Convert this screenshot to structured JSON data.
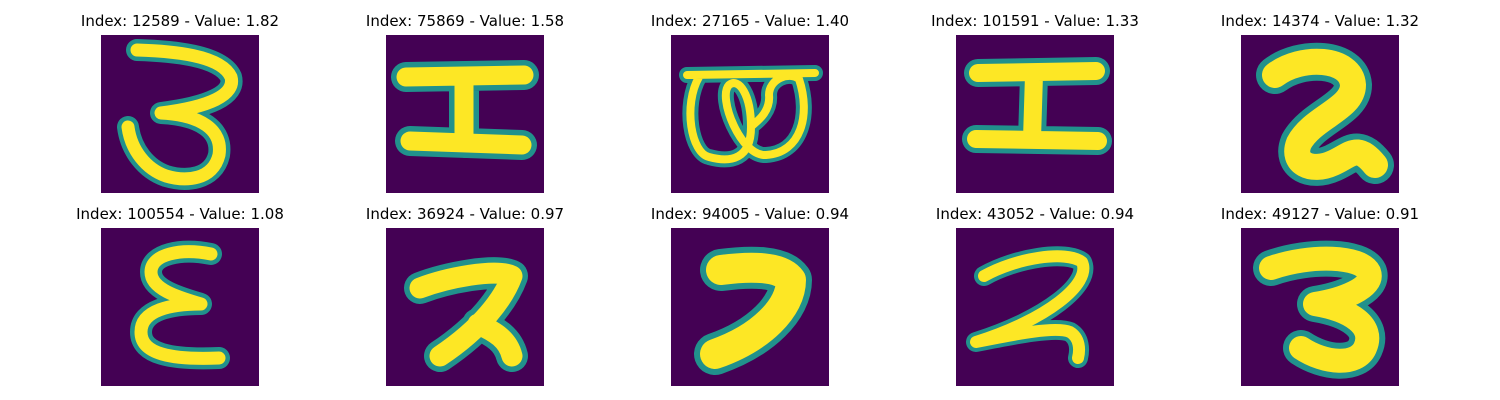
{
  "colors": {
    "background": "#440154",
    "mid": "#21918c",
    "stroke": "#fde725",
    "glow": "#5ec962"
  },
  "panels": [
    {
      "title": "Index: 12589 - Value: 1.82",
      "glyph": "digit-3-open-loop",
      "stroke": "thin"
    },
    {
      "title": "Index: 75869 - Value: 1.58",
      "glyph": "i-beam",
      "stroke": "thick"
    },
    {
      "title": "Index: 27165 - Value: 1.40",
      "glyph": "double-loop-w",
      "stroke": "thin"
    },
    {
      "title": "Index: 101591 - Value: 1.33",
      "glyph": "i-beam",
      "stroke": "thick"
    },
    {
      "title": "Index: 14374 - Value: 1.32",
      "glyph": "blob-2",
      "stroke": "bold"
    },
    {
      "title": "Index: 100554 - Value: 1.08",
      "glyph": "epsilon",
      "stroke": "thin"
    },
    {
      "title": "Index: 36924 - Value: 0.97",
      "glyph": "hook-a",
      "stroke": "thick"
    },
    {
      "title": "Index: 94005 - Value: 0.94",
      "glyph": "digit-7",
      "stroke": "bold"
    },
    {
      "title": "Index: 43052 - Value: 0.94",
      "glyph": "tailed-2",
      "stroke": "thin"
    },
    {
      "title": "Index: 49127 - Value: 0.91",
      "glyph": "digit-3-bold",
      "stroke": "bold"
    }
  ]
}
